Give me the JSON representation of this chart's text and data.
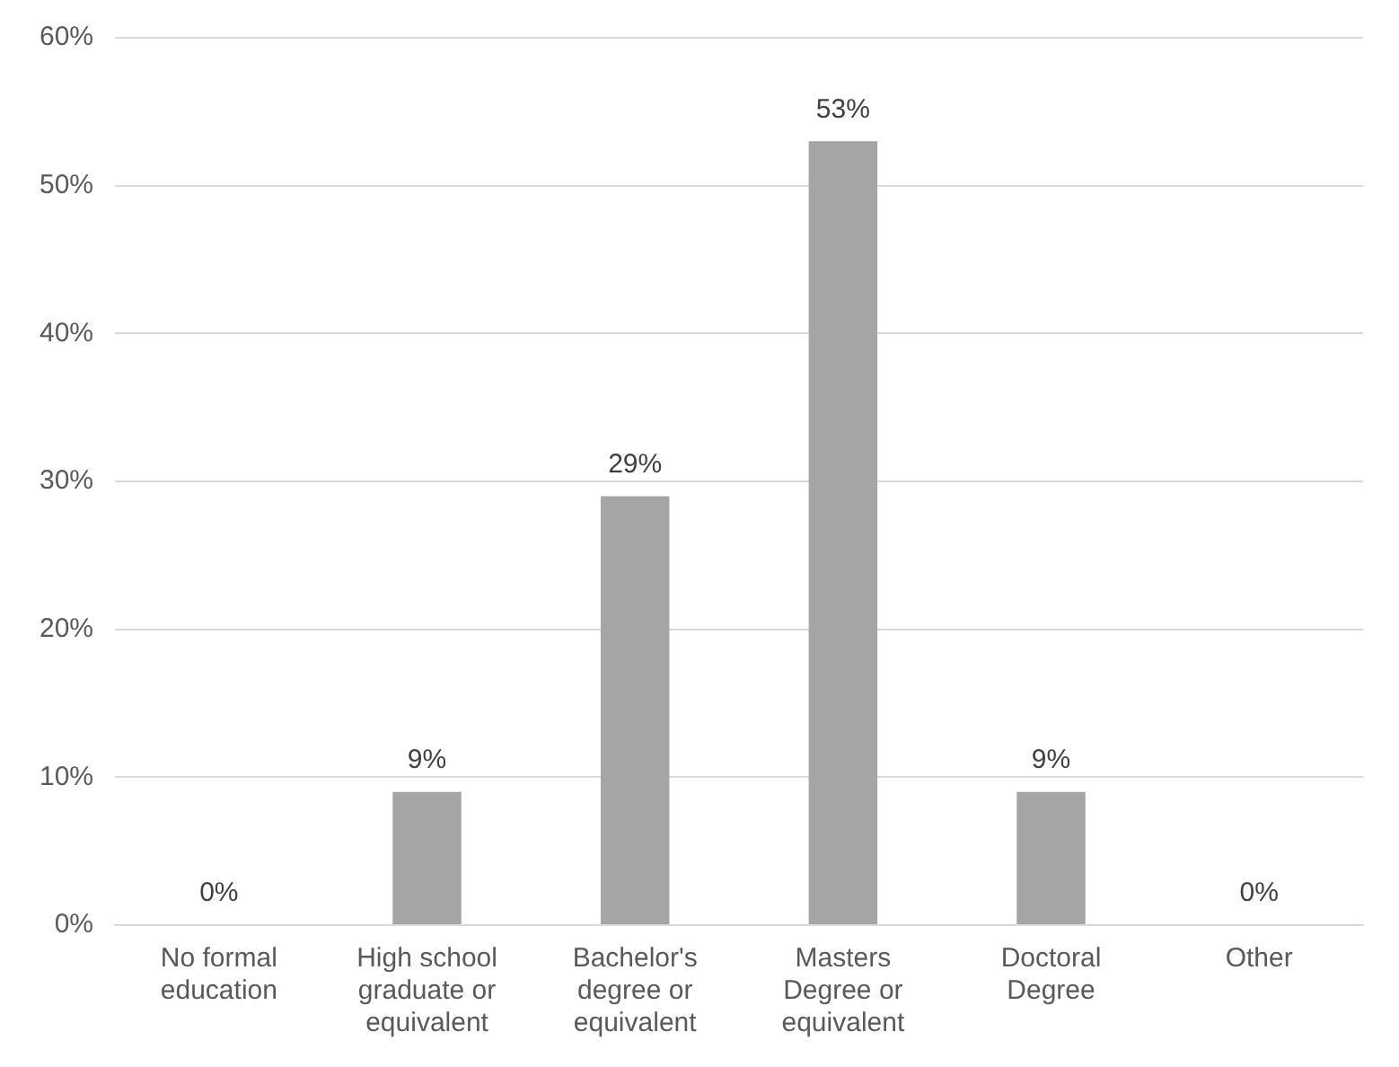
{
  "chart_data": {
    "type": "bar",
    "categories": [
      "No formal education",
      "High school graduate or equivalent",
      "Bachelor's degree or equivalent",
      "Masters Degree or equivalent",
      "Doctoral Degree",
      "Other"
    ],
    "values": [
      0,
      9,
      29,
      53,
      9,
      0
    ],
    "value_labels": [
      "0%",
      "9%",
      "29%",
      "53%",
      "9%",
      "0%"
    ],
    "color": "#a5a5a5",
    "ylim": [
      0,
      60
    ],
    "yticks": [
      {
        "value": 0,
        "label": "0%"
      },
      {
        "value": 10,
        "label": "10%"
      },
      {
        "value": 20,
        "label": "20%"
      },
      {
        "value": 30,
        "label": "30%"
      },
      {
        "value": 40,
        "label": "40%"
      },
      {
        "value": 50,
        "label": "50%"
      },
      {
        "value": 60,
        "label": "60%"
      }
    ],
    "grid": "y",
    "legend": false
  }
}
